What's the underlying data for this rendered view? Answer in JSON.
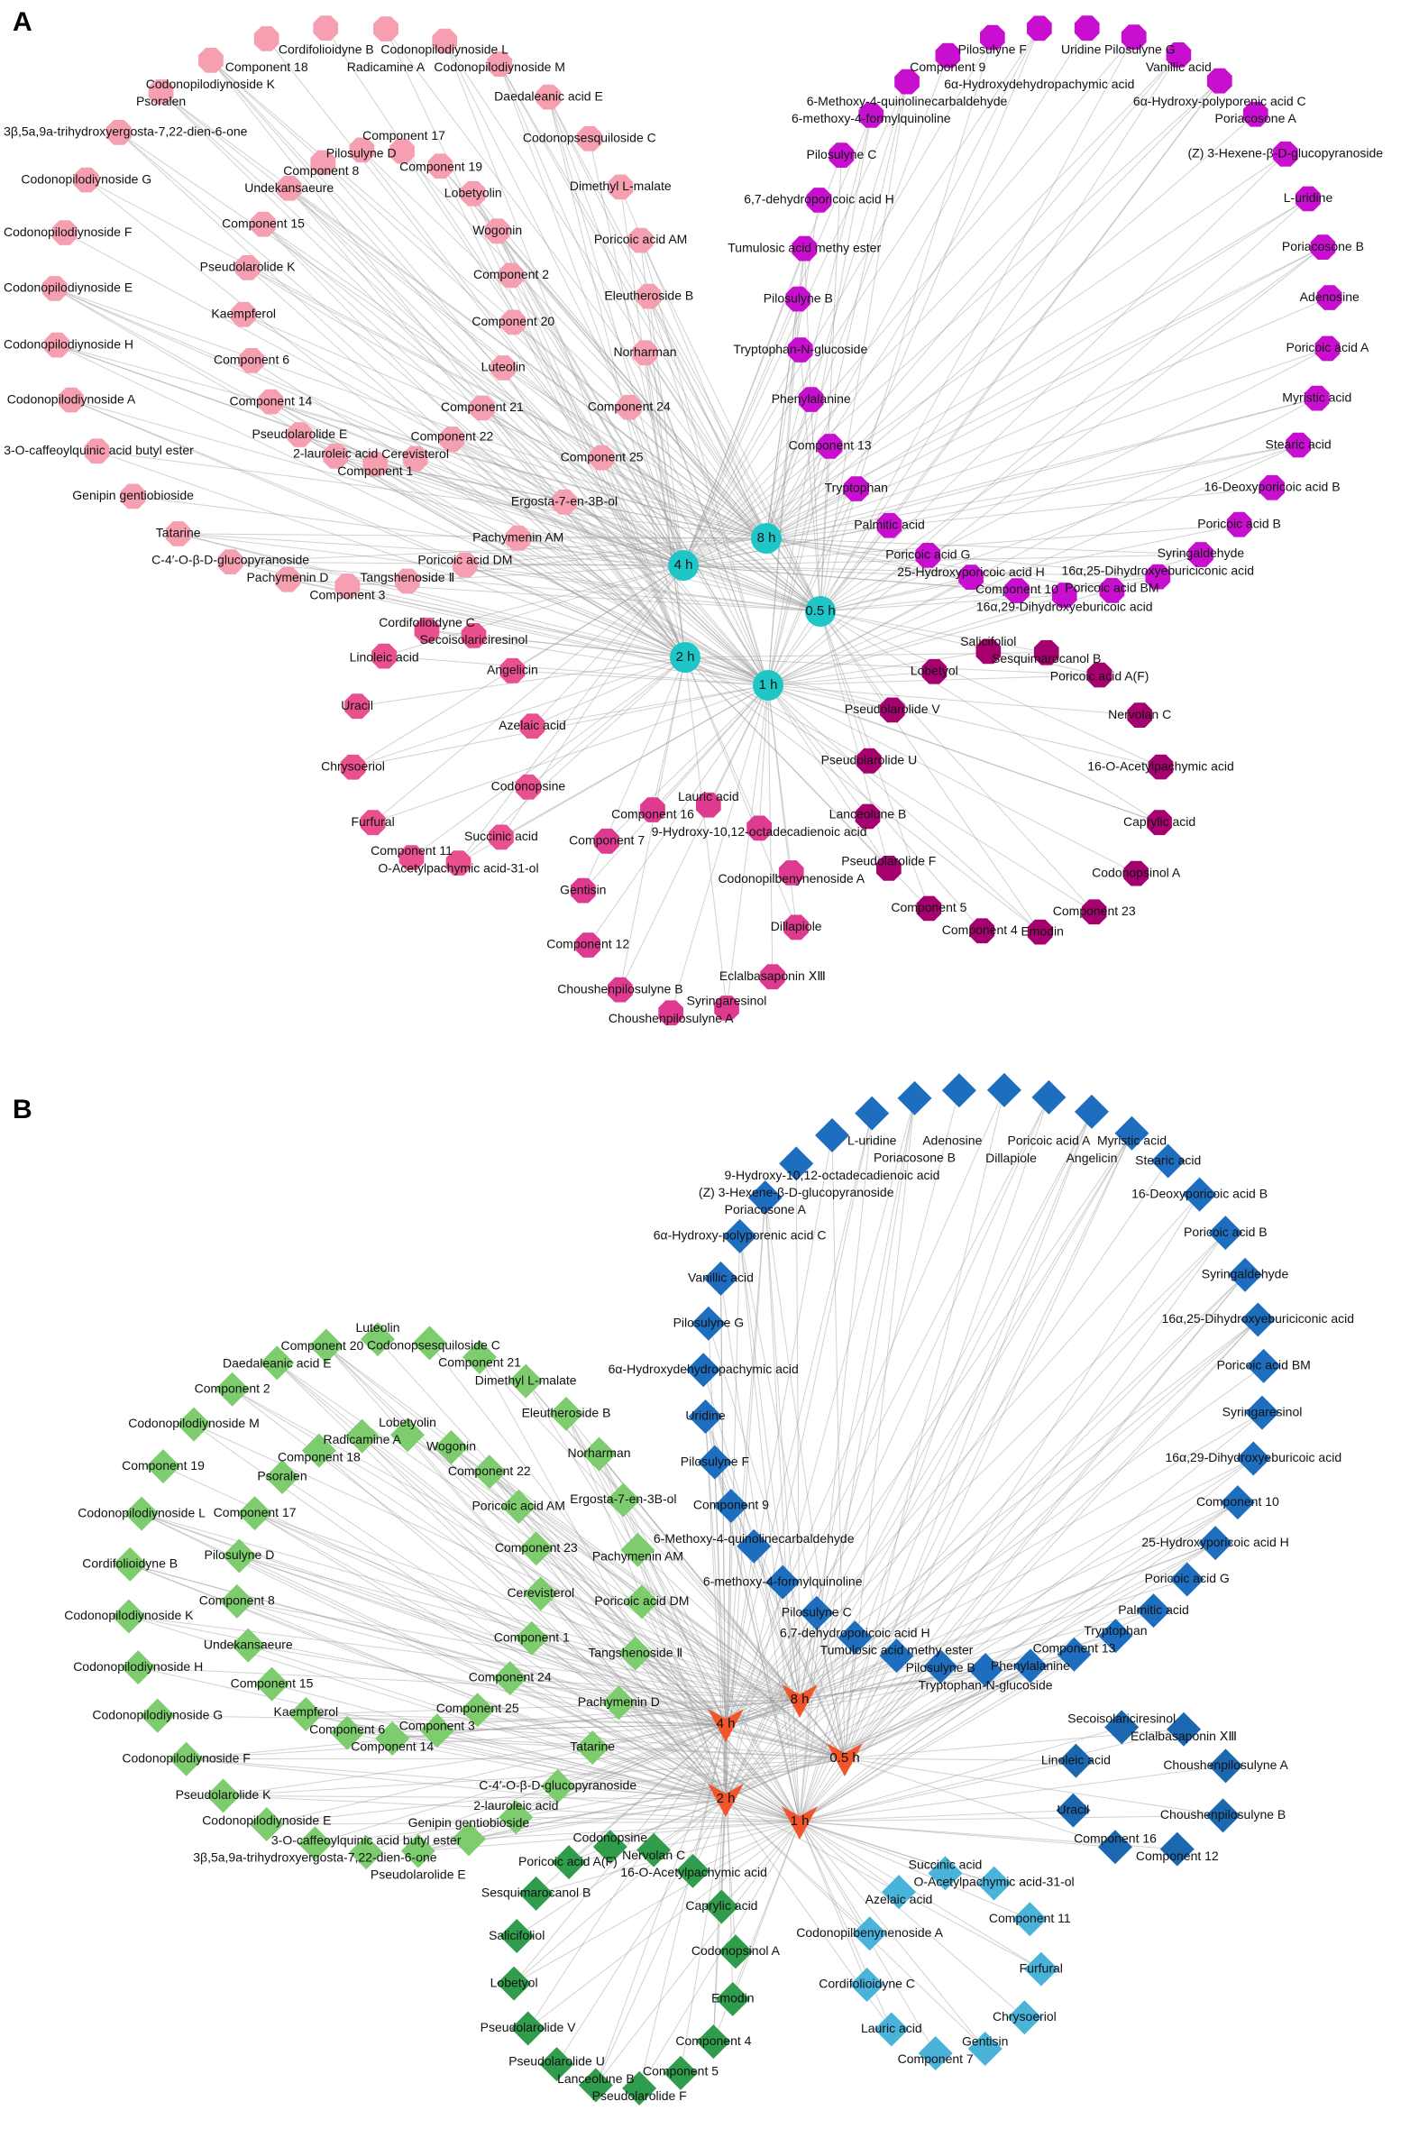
{
  "panels": [
    {
      "label": "A",
      "hub_shape": "circle",
      "hub_color": "#1ec6c8",
      "hubs": [
        "4 h",
        "8 h",
        "0.5 h",
        "2 h",
        "1 h"
      ],
      "node_shape": "octagon",
      "clusters": [
        {
          "id": "a-light-pink",
          "color": "#f59fb1",
          "linked_timepoints": [
            "4 h",
            "8 h",
            "2 h",
            "0.5 h",
            "1 h"
          ],
          "rings": [
            [
              "Cordifolioidyne B",
              "Radicamine A",
              "Codonopilodiynoside L",
              "Codonopilodiynoside M",
              "Daedaleanic acid E",
              "Codonopsesquiloside C",
              "Dimethyl L-malate",
              "Poricoic acid AM",
              "Eleutheroside B",
              "Norharman",
              "Component 24",
              "Component 25",
              "Ergosta-7-en-3B-ol",
              "Pachymenin AM",
              "Poricoic acid DM",
              "Tangshenoside Ⅱ",
              "Component 3",
              "Pachymenin D",
              "C-4′-O-β-D-glucopyranoside",
              "Tatarine",
              "Genipin gentiobioside",
              "3-O-caffeoylquinic acid butyl ester",
              "Codonopilodiynoside A",
              "Codonopilodiynoside H",
              "Codonopilodiynoside E",
              "Codonopilodiynoside F",
              "Codonopilodiynoside G",
              "3β,5a,9a-trihydroxyergosta-7,22-dien-6-one",
              "Psoralen",
              "Codonopilodiynoside K",
              "Component 18"
            ],
            [
              "Component 17",
              "Component 19",
              "Lobetyolin",
              "Wogonin",
              "Component 2",
              "Component 20",
              "Luteolin",
              "Component 21",
              "Component 22",
              "Cerevisterol",
              "Component 1",
              "2-lauroleic acid",
              "Pseudolarolide E",
              "Component 14",
              "Component 6",
              "Kaempferol",
              "Pseudolarolide K",
              "Component 15",
              "Undekansaeure",
              "Component 8",
              "Pilosulyne D"
            ]
          ]
        },
        {
          "id": "a-magenta",
          "color": "#c80fcf",
          "linked_timepoints": [
            "8 h",
            "0.5 h",
            "4 h",
            "1 h"
          ],
          "rings": [
            [
              "Uridine",
              "Pilosulyne G",
              "Vanillic acid",
              "6α-Hydroxy-polyporenic acid C",
              "Poriacosone A",
              "(Z) 3-Hexene-β-D-glucopyranoside",
              "L-uridine",
              "Poriacosone B",
              "Adenosine",
              "Poricoic acid A",
              "Myristic acid",
              "Stearic acid",
              "16-Deoxyporicoic acid B",
              "Poricoic acid B",
              "Syringaldehyde",
              "16α,25-Dihydroxyeburiciconic acid",
              "Poricoic acid BM",
              "16α,29-Dihydroxyeburicoic acid",
              "Component 10",
              "25-Hydroxyporicoic acid H",
              "Poricoic acid G",
              "Palmitic acid",
              "Tryptophan",
              "Component 13",
              "Phenylalanine",
              "Tryptophan-N-glucoside",
              "Pilosulyne B",
              "Tumulosic acid methy ester",
              "6,7-dehydroporicoic acid H",
              "Pilosulyne C",
              "6-methoxy-4-formylquinoline",
              "6-Methoxy-4-quinolinecarbaldehyde",
              "Component 9",
              "Pilosulyne F",
              "6α-Hydroxydehydropachymic acid"
            ]
          ]
        },
        {
          "id": "a-hot-pink",
          "color": "#ea4f8e",
          "linked_timepoints": [
            "2 h",
            "4 h",
            "1 h"
          ],
          "rings": [
            [
              "Secoisolariciresinol",
              "Angelicin",
              "Azelaic acid",
              "Codonopsine",
              "Succinic acid",
              "O-Acetylpachymic acid-31-ol",
              "Component 11",
              "Furfural",
              "Chrysoeriol",
              "Uracil",
              "Linoleic acid",
              "Cordifolioidyne C"
            ]
          ]
        },
        {
          "id": "a-pink",
          "color": "#de3a8f",
          "linked_timepoints": [
            "1 h",
            "2 h"
          ],
          "rings": [
            [
              "Lauric acid",
              "9-Hydroxy-10,12-octadecadienoic acid",
              "Codonopilbenynenoside A",
              "Dillapiole",
              "Eclalbasaponin ⅩⅢ",
              "Syringaresinol",
              "Choushenpilosulyne A",
              "Choushenpilosulyne B",
              "Component 12",
              "Gentisin",
              "Component 7",
              "Component 16"
            ]
          ]
        },
        {
          "id": "a-dark-magenta",
          "color": "#a6026f",
          "linked_timepoints": [
            "1 h",
            "0.5 h",
            "2 h"
          ],
          "rings": [
            [
              "Salicifoliol",
              "Sesquimarocanol B",
              "Poricoic acid A(F)",
              "Nervolan C",
              "16-O-Acetylpachymic acid",
              "Caprylic acid",
              "Codonopsinol A",
              "Component 23",
              "Emodin",
              "Component 4",
              "Component 5",
              "Pseudolarolide F",
              "Lanceolune B",
              "Pseudolarolide U",
              "Pseudolarolide V",
              "Lobetyol"
            ]
          ]
        }
      ]
    },
    {
      "label": "B",
      "hub_shape": "arrow",
      "hub_color": "#f2552a",
      "hubs": [
        "4 h",
        "8 h",
        "0.5 h",
        "2 h",
        "1 h"
      ],
      "node_shape": "diamond",
      "clusters": [
        {
          "id": "b-blue",
          "color": "#1e6ebf",
          "linked_timepoints": [
            "8 h",
            "0.5 h",
            "4 h",
            "1 h",
            "2 h"
          ],
          "rings": [
            [
              "Adenosine",
              "Dillapiole",
              "Poricoic acid A",
              "Angelicin",
              "Myristic acid",
              "Stearic acid",
              "16-Deoxyporicoic acid B",
              "Poricoic acid B",
              "Syringaldehyde",
              "16α,25-Dihydroxyeburiciconic acid",
              "Poricoic acid BM",
              "Syringaresinol",
              "16α,29-Dihydroxyeburicoic acid",
              "Component 10",
              "25-Hydroxyporicoic acid H",
              "Poricoic acid G",
              "Palmitic acid",
              "Tryptophan",
              "Component 13",
              "Phenylalanine",
              "Tryptophan-N-glucoside",
              "Pilosulyne B",
              "Tumulosic acid methy ester",
              "6,7-dehydroporicoic acid H",
              "Pilosulyne C",
              "6-methoxy-4-formylquinoline",
              "6-Methoxy-4-quinolinecarbaldehyde",
              "Component 9",
              "Pilosulyne F",
              "Uridine",
              "6α-Hydroxydehydropachymic acid",
              "Pilosulyne G",
              "Vanillic acid",
              "6α-Hydroxy-polyporenic acid C",
              "Poriacosone A",
              "(Z) 3-Hexene-β-D-glucopyranoside",
              "9-Hydroxy-10,12-octadecadienoic acid",
              "L-uridine",
              "Poriacosone B"
            ]
          ]
        },
        {
          "id": "b-light-green",
          "color": "#7dcc6e",
          "linked_timepoints": [
            "4 h",
            "2 h",
            "8 h",
            "0.5 h",
            "1 h"
          ],
          "rings": [
            [
              "Codonopsesquiloside C",
              "Component 21",
              "Dimethyl L-malate",
              "Eleutheroside B",
              "Norharman",
              "Ergosta-7-en-3B-ol",
              "Pachymenin AM",
              "Poricoic acid DM",
              "Tangshenoside Ⅱ",
              "Pachymenin D",
              "Tatarine",
              "C-4′-O-β-D-glucopyranoside",
              "2-lauroleic acid",
              "Genipin gentiobioside",
              "Pseudolarolide E",
              "3-O-caffeoylquinic acid butyl ester",
              "3β,5a,9a-trihydroxyergosta-7,22-dien-6-one",
              "Codonopilodiynoside E",
              "Pseudolarolide K",
              "Codonopilodiynoside F",
              "Codonopilodiynoside G",
              "Codonopilodiynoside H",
              "Codonopilodiynoside K",
              "Cordifolioidyne B",
              "Codonopilodiynoside L",
              "Component 19",
              "Codonopilodiynoside M",
              "Component 2",
              "Daedaleanic acid E",
              "Component 20",
              "Luteolin"
            ],
            [
              "Radicamine A",
              "Lobetyolin",
              "Wogonin",
              "Component 22",
              "Poricoic acid AM",
              "Component 23",
              "Cerevisterol",
              "Component 1",
              "Component 24",
              "Component 25",
              "Component 3",
              "Component 14",
              "Component 6",
              "Kaempferol",
              "Component 15",
              "Undekansaeure",
              "Component 8",
              "Pilosulyne D",
              "Component 17",
              "Psoralen",
              "Component 18"
            ]
          ]
        },
        {
          "id": "b-dark-green",
          "color": "#2f9d4b",
          "linked_timepoints": [
            "2 h",
            "1 h",
            "4 h"
          ],
          "rings": [
            [
              "Nervolan C",
              "16-O-Acetylpachymic acid",
              "Caprylic acid",
              "Codonopsinol A",
              "Emodin",
              "Component 4",
              "Component 5",
              "Pseudolarolide F",
              "Lanceolune B",
              "Pseudolarolide U",
              "Pseudolarolide V",
              "Lobetyol",
              "Salicifoliol",
              "Sesquimarocanol B",
              "Poricoic acid A(F)",
              "Codonopsine"
            ]
          ]
        },
        {
          "id": "b-light-blue",
          "color": "#4ab3da",
          "linked_timepoints": [
            "1 h",
            "2 h"
          ],
          "rings": [
            [
              "Succinic acid",
              "O-Acetylpachymic acid-31-ol",
              "Component 11",
              "Furfural",
              "Chrysoeriol",
              "Gentisin",
              "Component 7",
              "Lauric acid",
              "Cordifolioidyne C",
              "Codonopilbenynenoside A",
              "Azelaic acid"
            ]
          ]
        },
        {
          "id": "b-dark-blue",
          "color": "#1b68b1",
          "linked_timepoints": [
            "1 h",
            "0.5 h"
          ],
          "rings": [
            [
              "Secoisolariciresinol",
              "Eclalbasaponin ⅩⅢ",
              "Choushenpilosulyne A",
              "Choushenpilosulyne B",
              "Component 12",
              "Component 16",
              "Uracil",
              "Linoleic acid"
            ]
          ]
        }
      ]
    }
  ]
}
